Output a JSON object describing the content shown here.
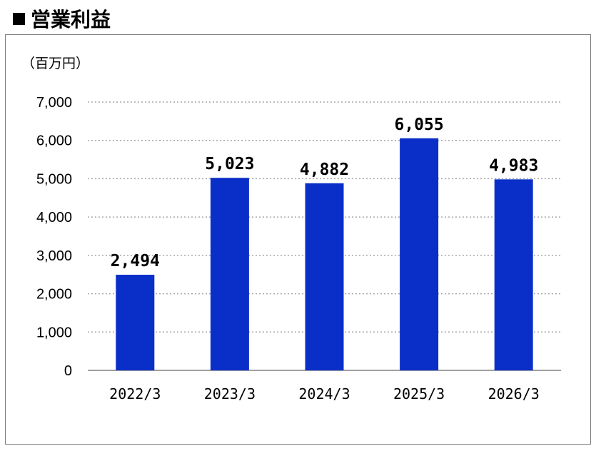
{
  "header": {
    "title": "営業利益"
  },
  "chart_data": {
    "type": "bar",
    "unit_label": "（百万円）",
    "categories": [
      "2022/3",
      "2023/3",
      "2024/3",
      "2025/3",
      "2026/3"
    ],
    "values": [
      2494,
      5023,
      4882,
      6055,
      4983
    ],
    "data_labels": [
      "2,494",
      "5,023",
      "4,882",
      "6,055",
      "4,983"
    ],
    "ylim": [
      0,
      7000
    ],
    "yticks": [
      0,
      1000,
      2000,
      3000,
      4000,
      5000,
      6000,
      7000
    ],
    "ytick_labels": [
      "0",
      "1,000",
      "2,000",
      "3,000",
      "4,000",
      "5,000",
      "6,000",
      "7,000"
    ],
    "grid": true,
    "bar_color": "#0a2fc8",
    "grid_color": "#a6a6a6"
  }
}
